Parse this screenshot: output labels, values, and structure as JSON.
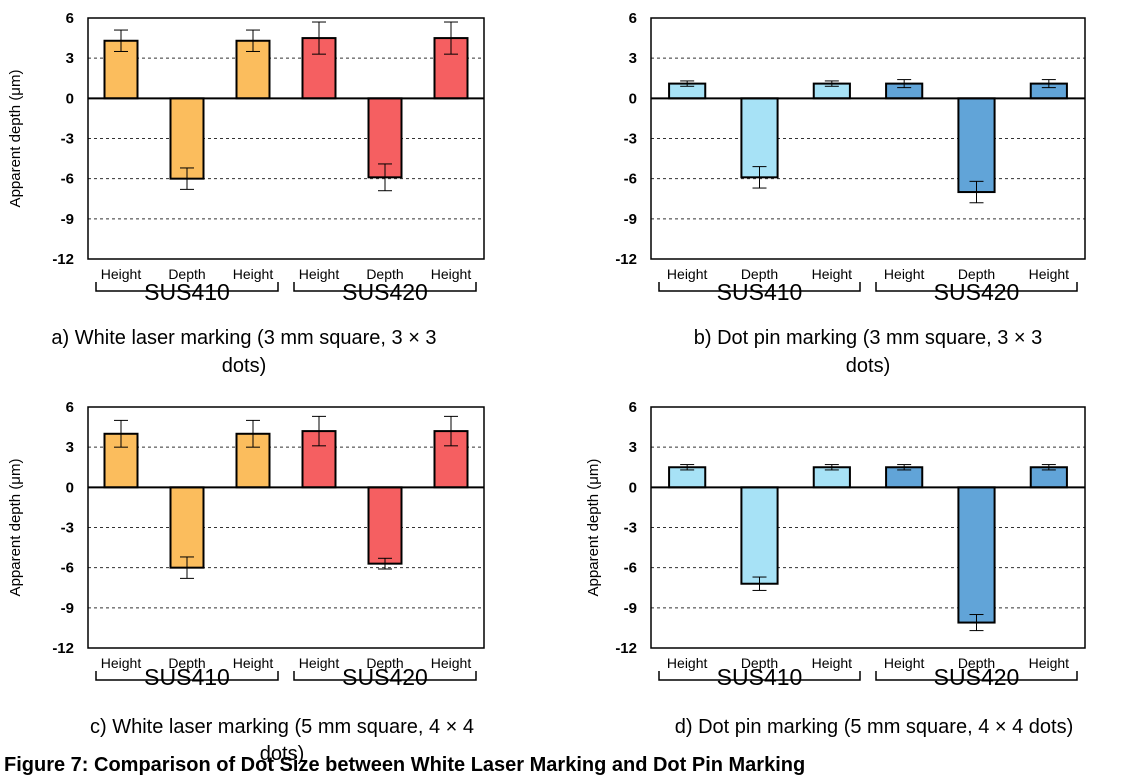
{
  "colors": {
    "white_laser_sus410": "#fbbd5d",
    "white_laser_sus420": "#f55f61",
    "dot_pin_sus410": "#a7e2f6",
    "dot_pin_sus420": "#61a4d8",
    "grid": "#333333"
  },
  "figure_caption": "Figure 7: Comparison of Dot Size between White Laser Marking and Dot Pin Marking",
  "chart_data": [
    {
      "type": "bar",
      "caption": "a) White laser marking (3 mm square, 3 × 3 dots)",
      "ylabel": "Apparent depth (μm)",
      "ylim": [
        -12,
        6
      ],
      "yticks": [
        "6",
        "3",
        "0",
        "-3",
        "-6",
        "-9",
        "-12"
      ],
      "grid": "dashed horizontal",
      "categories": [
        "Height",
        "Depth",
        "Height",
        "Height",
        "Depth",
        "Height"
      ],
      "groups": [
        "SUS410",
        "SUS420"
      ],
      "values": [
        4.3,
        -6.0,
        4.3,
        4.5,
        -5.9,
        4.5
      ],
      "errors": [
        0.8,
        0.8,
        0.8,
        1.2,
        1.0,
        1.2
      ]
    },
    {
      "type": "bar",
      "caption": "b) Dot pin marking (3 mm square, 3 × 3 dots)",
      "ylabel": "",
      "ylim": [
        -12,
        6
      ],
      "yticks": [
        "6",
        "3",
        "0",
        "-3",
        "-6",
        "-9",
        "-12"
      ],
      "grid": "dashed horizontal",
      "categories": [
        "Height",
        "Depth",
        "Height",
        "Height",
        "Depth",
        "Height"
      ],
      "groups": [
        "SUS410",
        "SUS420"
      ],
      "values": [
        1.1,
        -5.9,
        1.1,
        1.1,
        -7.0,
        1.1
      ],
      "errors": [
        0.2,
        0.8,
        0.2,
        0.3,
        0.8,
        0.3
      ]
    },
    {
      "type": "bar",
      "caption": "c) White laser marking (5 mm square, 4 × 4 dots)",
      "ylabel": "Apparent depth (μm)",
      "ylim": [
        -12,
        6
      ],
      "yticks": [
        "6",
        "3",
        "0",
        "-3",
        "-6",
        "-9",
        "-12"
      ],
      "grid": "dashed horizontal",
      "categories": [
        "Height",
        "Depth",
        "Height",
        "Height",
        "Depth",
        "Height"
      ],
      "groups": [
        "SUS410",
        "SUS420"
      ],
      "values": [
        4.0,
        -6.0,
        4.0,
        4.2,
        -5.7,
        4.2
      ],
      "errors": [
        1.0,
        0.8,
        1.0,
        1.1,
        0.4,
        1.1
      ]
    },
    {
      "type": "bar",
      "caption": "d) Dot pin marking (5 mm square, 4 × 4 dots)",
      "ylabel": "Apparent depth (μm)",
      "ylim": [
        -12,
        6
      ],
      "yticks": [
        "6",
        "3",
        "0",
        "-3",
        "-6",
        "-9",
        "-12"
      ],
      "grid": "dashed horizontal",
      "categories": [
        "Height",
        "Depth",
        "Height",
        "Height",
        "Depth",
        "Height"
      ],
      "groups": [
        "SUS410",
        "SUS420"
      ],
      "values": [
        1.5,
        -7.2,
        1.5,
        1.5,
        -10.1,
        1.5
      ],
      "errors": [
        0.2,
        0.5,
        0.2,
        0.2,
        0.6,
        0.2
      ]
    }
  ]
}
